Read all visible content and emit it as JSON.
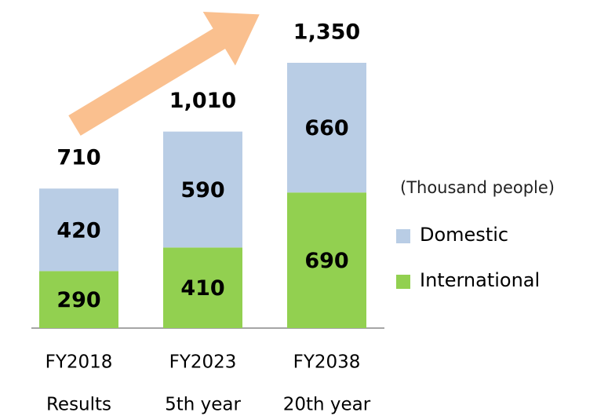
{
  "chart_data": {
    "type": "stacked_bar",
    "categories": [
      "FY2018",
      "FY2023",
      "FY2038"
    ],
    "subcategories": [
      "Results",
      "5th year",
      "20th year"
    ],
    "unit_label": "(Thousand people)",
    "series": [
      {
        "name": "International",
        "color": "#92d050",
        "values": [
          290,
          410,
          690
        ]
      },
      {
        "name": "Domestic",
        "color": "#b9cde5",
        "values": [
          420,
          590,
          660
        ]
      }
    ],
    "totals": [
      710,
      1010,
      1350
    ],
    "totals_labels": [
      "710",
      "1,010",
      "1,350"
    ]
  }
}
